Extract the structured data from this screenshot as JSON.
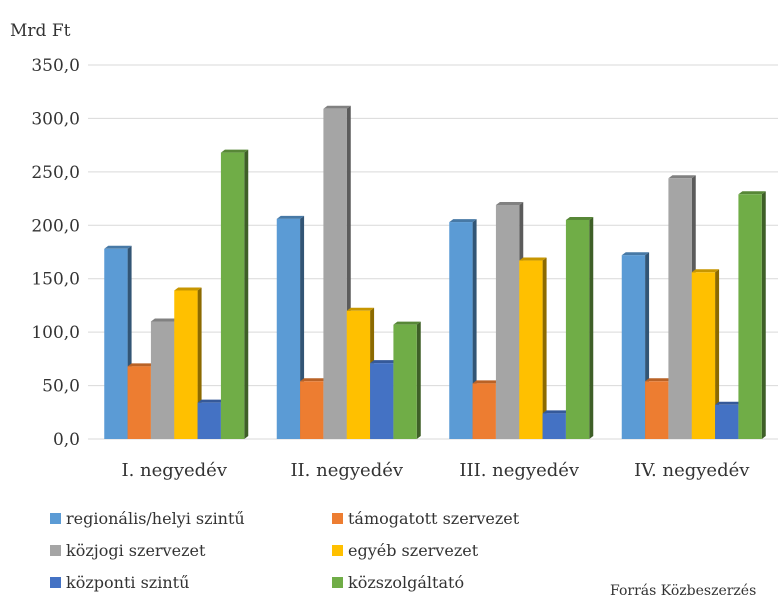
{
  "chart_data": {
    "type": "bar",
    "ylabel": "Mrd Ft",
    "ylim": [
      0,
      350
    ],
    "yticks": [
      "0,0",
      "50,0",
      "100,0",
      "150,0",
      "200,0",
      "250,0",
      "300,0",
      "350,0"
    ],
    "grid": true,
    "legend_position": "bottom",
    "categories": [
      "I. negyedév",
      "II. negyedév",
      "III. negyedév",
      "IV. negyedév"
    ],
    "series": [
      {
        "name": "regionális/helyi szintű",
        "color": "#5b9bd5",
        "values": [
          178,
          206,
          203,
          172
        ]
      },
      {
        "name": "támogatott szervezet",
        "color": "#ed7d31",
        "values": [
          68,
          54,
          52,
          54
        ]
      },
      {
        "name": "közjogi szervezet",
        "color": "#a5a5a5",
        "values": [
          110,
          309,
          219,
          244
        ]
      },
      {
        "name": "egyéb szervezet",
        "color": "#ffc000",
        "values": [
          139,
          120,
          167,
          156
        ]
      },
      {
        "name": "központi szintű",
        "color": "#4472c4",
        "values": [
          34,
          71,
          24,
          32
        ]
      },
      {
        "name": "közszolgáltató",
        "color": "#70ad47",
        "values": [
          268,
          107,
          205,
          229
        ]
      }
    ],
    "source": "Forrás Közbeszerzés"
  }
}
